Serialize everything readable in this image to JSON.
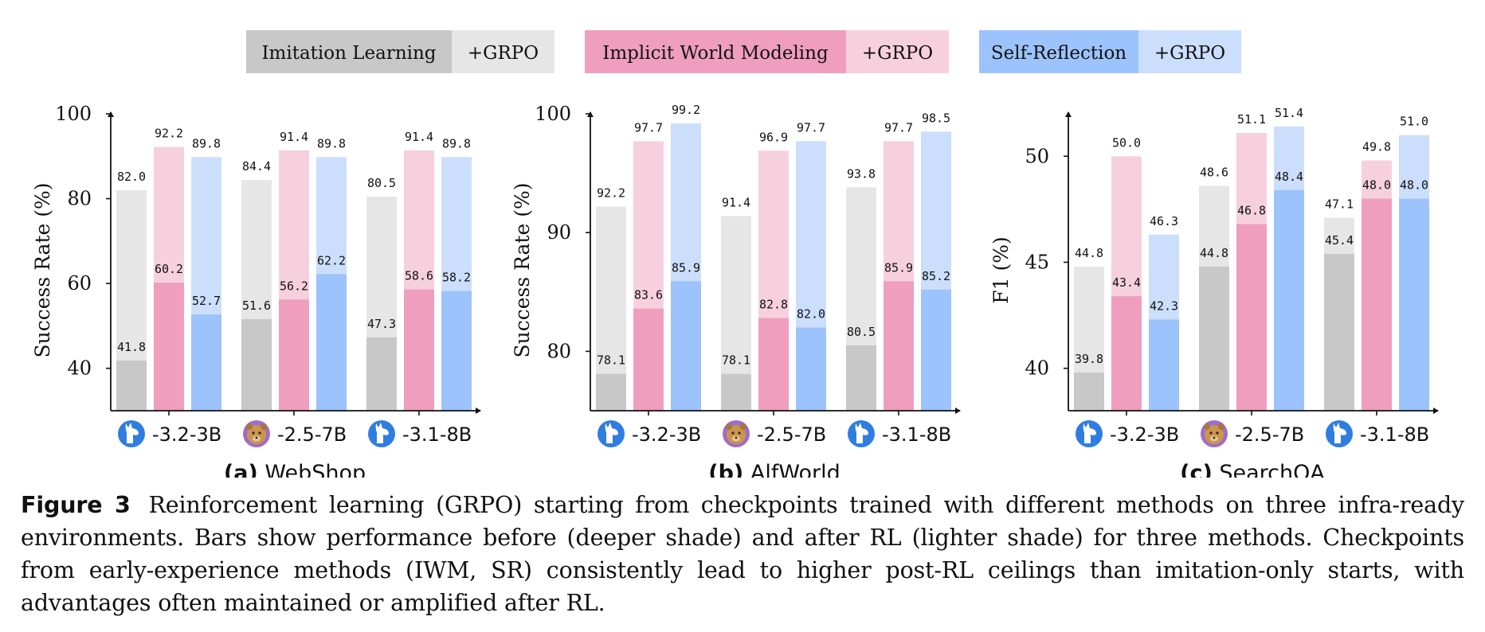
{
  "legend": [
    {
      "label": "Imitation Learning",
      "extra": "+GRPO",
      "deep": "#c8c8c8",
      "light": "#e6e6e6"
    },
    {
      "label": "Implicit World Modeling",
      "extra": "+GRPO",
      "deep": "#f09ebd",
      "light": "#f7d0de"
    },
    {
      "label": "Self-Reflection",
      "extra": "+GRPO",
      "deep": "#9cc3fb",
      "light": "#cbdffc"
    }
  ],
  "chart_data": [
    {
      "type": "bar",
      "subfigure_tag": "(a)",
      "title": "WebShop",
      "ylabel": "Success Rate (%)",
      "ylim": [
        30,
        100
      ],
      "yticks": [
        40,
        60,
        80,
        100
      ],
      "categories": [
        "-3.2-3B",
        "-2.5-7B",
        "-3.1-8B"
      ],
      "category_icons": [
        "llama-icon",
        "qwen-icon",
        "llama-icon"
      ],
      "series": [
        {
          "name": "Imitation Learning",
          "before": [
            41.8,
            51.6,
            47.3
          ],
          "after": [
            82.0,
            84.4,
            80.5
          ]
        },
        {
          "name": "Implicit World Modeling",
          "before": [
            60.2,
            56.2,
            58.6
          ],
          "after": [
            92.2,
            91.4,
            91.4
          ]
        },
        {
          "name": "Self-Reflection",
          "before": [
            52.7,
            62.2,
            58.2
          ],
          "after": [
            89.8,
            89.8,
            89.8
          ]
        }
      ]
    },
    {
      "type": "bar",
      "subfigure_tag": "(b)",
      "title": "AlfWorld",
      "ylabel": "Success Rate (%)",
      "ylim": [
        75,
        100
      ],
      "yticks": [
        80,
        90,
        100
      ],
      "categories": [
        "-3.2-3B",
        "-2.5-7B",
        "-3.1-8B"
      ],
      "category_icons": [
        "llama-icon",
        "qwen-icon",
        "llama-icon"
      ],
      "series": [
        {
          "name": "Imitation Learning",
          "before": [
            78.1,
            78.1,
            80.5
          ],
          "after": [
            92.2,
            91.4,
            93.8
          ]
        },
        {
          "name": "Implicit World Modeling",
          "before": [
            83.6,
            82.8,
            85.9
          ],
          "after": [
            97.7,
            96.9,
            97.7
          ]
        },
        {
          "name": "Self-Reflection",
          "before": [
            85.9,
            82.0,
            85.2
          ],
          "after": [
            99.2,
            97.7,
            98.5
          ]
        }
      ]
    },
    {
      "type": "bar",
      "subfigure_tag": "(c)",
      "title": "SearchQA",
      "ylabel": "F1 (%)",
      "ylim": [
        38,
        52
      ],
      "yticks": [
        40,
        45,
        50
      ],
      "categories": [
        "-3.2-3B",
        "-2.5-7B",
        "-3.1-8B"
      ],
      "category_icons": [
        "llama-icon",
        "qwen-icon",
        "llama-icon"
      ],
      "series": [
        {
          "name": "Imitation Learning",
          "before": [
            39.8,
            44.8,
            45.4
          ],
          "after": [
            44.8,
            48.6,
            47.1
          ]
        },
        {
          "name": "Implicit World Modeling",
          "before": [
            43.4,
            46.8,
            48.0
          ],
          "after": [
            50.0,
            51.1,
            49.8
          ]
        },
        {
          "name": "Self-Reflection",
          "before": [
            42.3,
            48.4,
            48.0
          ],
          "after": [
            46.3,
            51.4,
            51.0
          ]
        }
      ]
    }
  ],
  "caption": {
    "label": "Figure 3",
    "text": "Reinforcement learning (GRPO) starting from checkpoints trained with different methods on three infra-ready environments. Bars show performance before (deeper shade) and after RL (lighter shade) for three methods. Checkpoints from early-experience methods (IWM, SR) consistently lead to higher post-RL ceilings than imitation-only starts, with advantages often maintained or amplified after RL."
  }
}
